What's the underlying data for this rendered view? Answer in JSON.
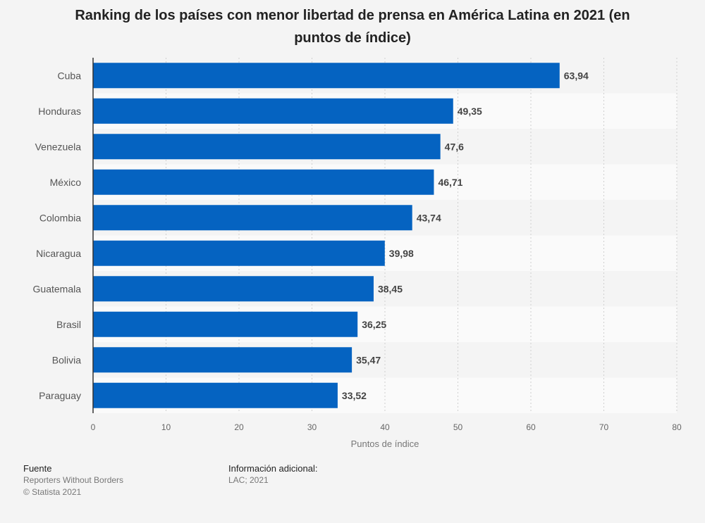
{
  "chart_data": {
    "type": "bar",
    "orientation": "horizontal",
    "title": "Ranking de los países con menor libertad de prensa en América Latina en 2021 (en puntos de índice)",
    "categories": [
      "Cuba",
      "Honduras",
      "Venezuela",
      "México",
      "Colombia",
      "Nicaragua",
      "Guatemala",
      "Brasil",
      "Bolivia",
      "Paraguay"
    ],
    "values": [
      63.94,
      49.35,
      47.6,
      46.71,
      43.74,
      39.98,
      38.45,
      36.25,
      35.47,
      33.52
    ],
    "value_labels": [
      "63,94",
      "49,35",
      "47,6",
      "46,71",
      "43,74",
      "39,98",
      "38,45",
      "36,25",
      "35,47",
      "33,52"
    ],
    "xlabel": "Puntos de índice",
    "ylabel": "",
    "xlim": [
      0,
      80
    ],
    "x_ticks": [
      0,
      10,
      20,
      30,
      40,
      50,
      60,
      70,
      80
    ],
    "grid": true,
    "bar_color": "#0563c1"
  },
  "footer": {
    "source_heading": "Fuente",
    "source_name": "Reporters Without Borders",
    "copyright": "© Statista 2021",
    "info_heading": "Información adicional:",
    "info_text": "LAC; 2021"
  }
}
